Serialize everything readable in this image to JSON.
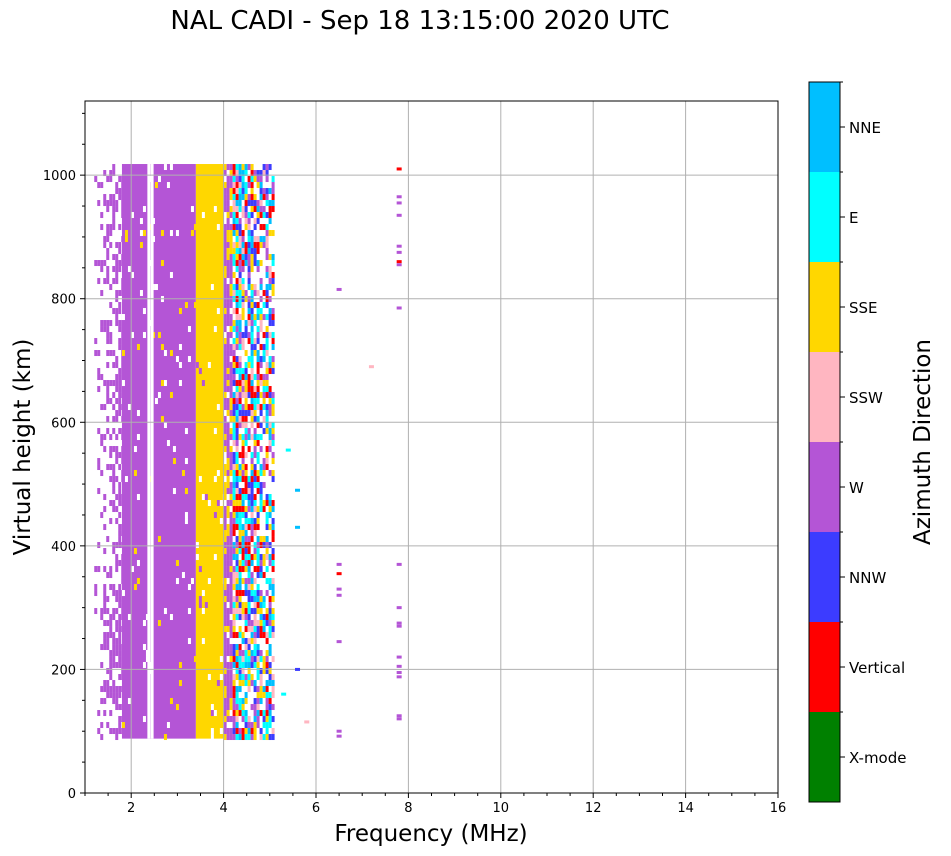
{
  "chart_data": {
    "type": "heatmap",
    "title": "NAL CADI - Sep 18 13:15:00 2020 UTC",
    "xlabel": "Frequency (MHz)",
    "ylabel": "Virtual height (km)",
    "xlim": [
      1,
      16
    ],
    "ylim": [
      0,
      1120
    ],
    "x_ticks": [
      "2",
      "4",
      "6",
      "8",
      "10",
      "12",
      "14",
      "16"
    ],
    "y_ticks": [
      "0",
      "200",
      "400",
      "600",
      "800",
      "1000"
    ],
    "x_tick_values": [
      2,
      4,
      6,
      8,
      10,
      12,
      14,
      16
    ],
    "y_tick_values": [
      0,
      200,
      400,
      600,
      800,
      1000
    ],
    "grid": true,
    "colorbar": {
      "label": "Azimuth Direction",
      "categories": [
        {
          "name": "X-mode",
          "color": "#008000"
        },
        {
          "name": "Vertical",
          "color": "#ff0000"
        },
        {
          "name": "NNW",
          "color": "#3c3cff"
        },
        {
          "name": "W",
          "color": "#b455d6"
        },
        {
          "name": "SSW",
          "color": "#ffb6c1"
        },
        {
          "name": "SSE",
          "color": "#ffd700"
        },
        {
          "name": "E",
          "color": "#00ffff"
        },
        {
          "name": "NNE",
          "color": "#00bfff"
        }
      ]
    },
    "regions": [
      {
        "direction": "W",
        "x_range": [
          1.2,
          1.8
        ],
        "height_range": [
          88,
          1018
        ],
        "density": "sparse"
      },
      {
        "direction": "W",
        "x_range": [
          1.8,
          3.4
        ],
        "height_range": [
          88,
          1018
        ],
        "density": "solid"
      },
      {
        "direction": "SSE",
        "x_range": [
          3.4,
          4.0
        ],
        "height_range": [
          88,
          1018
        ],
        "density": "solid"
      },
      {
        "direction": "mixed",
        "x_range": [
          4.0,
          5.1
        ],
        "height_range": [
          88,
          1018
        ],
        "density": "mixed"
      }
    ],
    "points": [
      {
        "x": 7.8,
        "y": 1010,
        "direction": "Vertical"
      },
      {
        "x": 7.8,
        "y": 965,
        "direction": "W"
      },
      {
        "x": 7.8,
        "y": 955,
        "direction": "W"
      },
      {
        "x": 7.8,
        "y": 935,
        "direction": "W"
      },
      {
        "x": 7.8,
        "y": 885,
        "direction": "W"
      },
      {
        "x": 7.8,
        "y": 875,
        "direction": "W"
      },
      {
        "x": 7.8,
        "y": 860,
        "direction": "Vertical"
      },
      {
        "x": 7.8,
        "y": 855,
        "direction": "W"
      },
      {
        "x": 7.8,
        "y": 785,
        "direction": "W"
      },
      {
        "x": 6.5,
        "y": 815,
        "direction": "W"
      },
      {
        "x": 7.2,
        "y": 690,
        "direction": "SSW"
      },
      {
        "x": 5.4,
        "y": 555,
        "direction": "E"
      },
      {
        "x": 5.6,
        "y": 490,
        "direction": "NNE"
      },
      {
        "x": 5.6,
        "y": 430,
        "direction": "NNE"
      },
      {
        "x": 6.5,
        "y": 370,
        "direction": "W"
      },
      {
        "x": 6.5,
        "y": 355,
        "direction": "Vertical"
      },
      {
        "x": 6.5,
        "y": 330,
        "direction": "W"
      },
      {
        "x": 6.5,
        "y": 320,
        "direction": "W"
      },
      {
        "x": 6.5,
        "y": 245,
        "direction": "W"
      },
      {
        "x": 6.5,
        "y": 100,
        "direction": "W"
      },
      {
        "x": 6.5,
        "y": 92,
        "direction": "W"
      },
      {
        "x": 7.8,
        "y": 370,
        "direction": "W"
      },
      {
        "x": 7.8,
        "y": 300,
        "direction": "W"
      },
      {
        "x": 7.8,
        "y": 275,
        "direction": "W"
      },
      {
        "x": 7.8,
        "y": 270,
        "direction": "W"
      },
      {
        "x": 7.8,
        "y": 220,
        "direction": "W"
      },
      {
        "x": 7.8,
        "y": 205,
        "direction": "W"
      },
      {
        "x": 7.8,
        "y": 195,
        "direction": "W"
      },
      {
        "x": 7.8,
        "y": 188,
        "direction": "W"
      },
      {
        "x": 7.8,
        "y": 125,
        "direction": "W"
      },
      {
        "x": 7.8,
        "y": 120,
        "direction": "W"
      },
      {
        "x": 5.6,
        "y": 200,
        "direction": "NNW"
      },
      {
        "x": 5.8,
        "y": 115,
        "direction": "SSW"
      },
      {
        "x": 5.3,
        "y": 160,
        "direction": "E"
      }
    ]
  }
}
